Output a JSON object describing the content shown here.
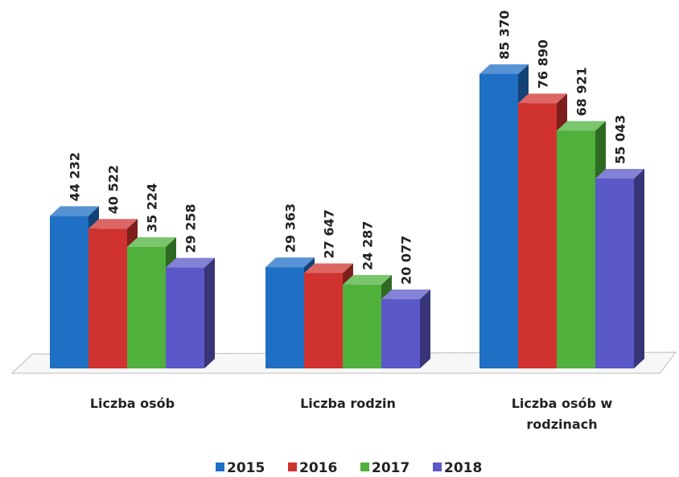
{
  "chart_data": {
    "type": "bar3d",
    "categories": [
      "Liczba osób",
      "Liczba rodzin",
      "Liczba osób w rodzinach"
    ],
    "series": [
      {
        "name": "2015",
        "color": "#1f6fc5",
        "values": [
          44232,
          29363,
          85370
        ],
        "value_labels": [
          "44 232",
          "29 363",
          "85 370"
        ]
      },
      {
        "name": "2016",
        "color": "#d0332f",
        "values": [
          40522,
          27647,
          76890
        ],
        "value_labels": [
          "40 522",
          "27 647",
          "76 890"
        ]
      },
      {
        "name": "2017",
        "color": "#4fb13b",
        "values": [
          35224,
          24287,
          68921
        ],
        "value_labels": [
          "35 224",
          "24 287",
          "68 921"
        ]
      },
      {
        "name": "2018",
        "color": "#5b58c8",
        "values": [
          29258,
          20077,
          55043
        ],
        "value_labels": [
          "29 258",
          "20 077",
          "55 043"
        ]
      }
    ],
    "legend": "bottom"
  }
}
